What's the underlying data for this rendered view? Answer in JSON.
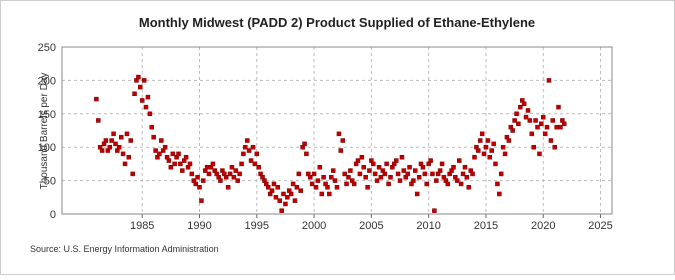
{
  "chart_data": {
    "type": "scatter",
    "title": "Monthly Midwest (PADD 2) Product Supplied of Ethane-Ethylene",
    "y_label": "Thousand Barrels per Day",
    "source": "Source: U.S. Energy Information Administration",
    "color": "#c00000",
    "grid": true,
    "xlim": [
      1978,
      2026
    ],
    "xticks": [
      1985,
      1990,
      1995,
      2000,
      2005,
      2010,
      2015,
      2020,
      2025
    ],
    "ylim": [
      0,
      250
    ],
    "yticks": [
      0,
      50,
      100,
      150,
      200,
      250
    ],
    "x": [
      1981.0,
      1981.17,
      1981.33,
      1981.5,
      1981.67,
      1981.83,
      1982.0,
      1982.17,
      1982.33,
      1982.5,
      1982.67,
      1982.83,
      1983.0,
      1983.17,
      1983.33,
      1983.5,
      1983.67,
      1983.83,
      1984.0,
      1984.17,
      1984.33,
      1984.5,
      1984.67,
      1984.83,
      1985.0,
      1985.17,
      1985.33,
      1985.5,
      1985.67,
      1985.83,
      1986.0,
      1986.17,
      1986.33,
      1986.5,
      1986.67,
      1986.83,
      1987.0,
      1987.17,
      1987.33,
      1987.5,
      1987.67,
      1987.83,
      1988.0,
      1988.17,
      1988.33,
      1988.5,
      1988.67,
      1988.83,
      1989.0,
      1989.17,
      1989.33,
      1989.5,
      1989.67,
      1989.83,
      1990.0,
      1990.17,
      1990.33,
      1990.5,
      1990.67,
      1990.83,
      1991.0,
      1991.17,
      1991.33,
      1991.5,
      1991.67,
      1991.83,
      1992.0,
      1992.17,
      1992.33,
      1992.5,
      1992.67,
      1992.83,
      1993.0,
      1993.17,
      1993.33,
      1993.5,
      1993.67,
      1993.83,
      1994.0,
      1994.17,
      1994.33,
      1994.5,
      1994.67,
      1994.83,
      1995.0,
      1995.17,
      1995.33,
      1995.5,
      1995.67,
      1995.83,
      1996.0,
      1996.17,
      1996.33,
      1996.5,
      1996.67,
      1996.83,
      1997.0,
      1997.17,
      1997.33,
      1997.5,
      1997.67,
      1997.83,
      1998.0,
      1998.17,
      1998.33,
      1998.5,
      1998.67,
      1998.83,
      1999.0,
      1999.17,
      1999.33,
      1999.5,
      1999.67,
      1999.83,
      2000.0,
      2000.17,
      2000.33,
      2000.5,
      2000.67,
      2000.83,
      2001.0,
      2001.17,
      2001.33,
      2001.5,
      2001.67,
      2001.83,
      2002.0,
      2002.17,
      2002.33,
      2002.5,
      2002.67,
      2002.83,
      2003.0,
      2003.17,
      2003.33,
      2003.5,
      2003.67,
      2003.83,
      2004.0,
      2004.17,
      2004.33,
      2004.5,
      2004.67,
      2004.83,
      2005.0,
      2005.17,
      2005.33,
      2005.5,
      2005.67,
      2005.83,
      2006.0,
      2006.17,
      2006.33,
      2006.5,
      2006.67,
      2006.83,
      2007.0,
      2007.17,
      2007.33,
      2007.5,
      2007.67,
      2007.83,
      2008.0,
      2008.17,
      2008.33,
      2008.5,
      2008.67,
      2008.83,
      2009.0,
      2009.17,
      2009.33,
      2009.5,
      2009.67,
      2009.83,
      2010.0,
      2010.17,
      2010.33,
      2010.5,
      2010.67,
      2010.83,
      2011.0,
      2011.17,
      2011.33,
      2011.5,
      2011.67,
      2011.83,
      2012.0,
      2012.17,
      2012.33,
      2012.5,
      2012.67,
      2012.83,
      2013.0,
      2013.17,
      2013.33,
      2013.5,
      2013.67,
      2013.83,
      2014.0,
      2014.17,
      2014.33,
      2014.5,
      2014.67,
      2014.83,
      2015.0,
      2015.17,
      2015.33,
      2015.5,
      2015.67,
      2015.83,
      2016.0,
      2016.17,
      2016.33,
      2016.5,
      2016.67,
      2016.83,
      2017.0,
      2017.17,
      2017.33,
      2017.5,
      2017.67,
      2017.83,
      2018.0,
      2018.17,
      2018.33,
      2018.5,
      2018.67,
      2018.83,
      2019.0,
      2019.17,
      2019.33,
      2019.5,
      2019.67,
      2019.83,
      2020.0,
      2020.17,
      2020.33,
      2020.5,
      2020.67,
      2020.83,
      2021.0,
      2021.17,
      2021.33,
      2021.5,
      2021.67,
      2021.83
    ],
    "values": [
      172,
      140,
      100,
      95,
      105,
      110,
      95,
      100,
      110,
      120,
      105,
      95,
      100,
      115,
      90,
      75,
      120,
      85,
      110,
      60,
      180,
      200,
      205,
      190,
      170,
      200,
      160,
      175,
      150,
      130,
      115,
      95,
      85,
      90,
      110,
      95,
      100,
      85,
      80,
      70,
      90,
      75,
      85,
      90,
      75,
      65,
      80,
      85,
      70,
      75,
      60,
      50,
      45,
      55,
      40,
      20,
      50,
      65,
      70,
      60,
      70,
      75,
      65,
      60,
      55,
      50,
      65,
      60,
      55,
      40,
      60,
      70,
      55,
      65,
      50,
      60,
      75,
      90,
      100,
      110,
      95,
      80,
      100,
      75,
      90,
      70,
      60,
      55,
      50,
      45,
      40,
      30,
      35,
      45,
      25,
      40,
      20,
      5,
      30,
      15,
      25,
      35,
      30,
      45,
      20,
      40,
      60,
      35,
      100,
      105,
      90,
      60,
      55,
      45,
      60,
      40,
      50,
      70,
      30,
      55,
      45,
      40,
      30,
      55,
      65,
      50,
      40,
      120,
      95,
      110,
      60,
      45,
      55,
      65,
      50,
      45,
      75,
      80,
      60,
      85,
      70,
      55,
      40,
      65,
      80,
      75,
      60,
      50,
      70,
      55,
      65,
      60,
      75,
      45,
      55,
      70,
      75,
      80,
      60,
      50,
      85,
      65,
      55,
      60,
      70,
      45,
      50,
      65,
      30,
      55,
      75,
      70,
      60,
      45,
      75,
      80,
      60,
      5,
      50,
      60,
      65,
      75,
      55,
      50,
      45,
      60,
      65,
      70,
      55,
      50,
      80,
      45,
      60,
      70,
      55,
      40,
      65,
      60,
      85,
      100,
      95,
      110,
      120,
      90,
      100,
      110,
      85,
      95,
      105,
      75,
      45,
      30,
      60,
      100,
      90,
      115,
      110,
      130,
      125,
      140,
      150,
      135,
      160,
      170,
      165,
      145,
      155,
      140,
      120,
      100,
      140,
      130,
      90,
      135,
      145,
      120,
      130,
      200,
      110,
      140,
      100,
      130,
      160,
      130,
      140,
      135
    ]
  }
}
